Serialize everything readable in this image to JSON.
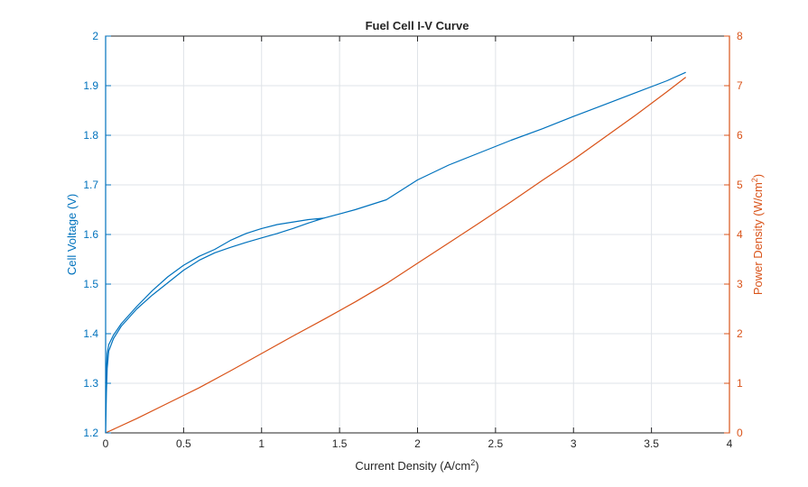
{
  "chart_data": {
    "type": "line",
    "title": "Fuel Cell I-V Curve",
    "xlabel": "Current  Density  (A/cm",
    "xlabel_sup": "2",
    "xlabel_suffix": ")",
    "ylabel_left": "Cell Voltage (V)",
    "ylabel_right": "Power  Density  (W/cm",
    "ylabel_right_sup": "2",
    "ylabel_right_suffix": ")",
    "xlim": [
      0,
      4
    ],
    "ylim_left": [
      1.2,
      2.0
    ],
    "ylim_right": [
      0,
      8
    ],
    "x_ticks": [
      "0",
      "0.5",
      "1",
      "1.5",
      "2",
      "2.5",
      "3",
      "3.5",
      "4"
    ],
    "y_left_ticks": [
      "1.2",
      "1.3",
      "1.4",
      "1.5",
      "1.6",
      "1.7",
      "1.8",
      "1.9",
      "2"
    ],
    "y_right_ticks": [
      "0",
      "1",
      "2",
      "3",
      "4",
      "5",
      "6",
      "7",
      "8"
    ],
    "grid": true,
    "colors": {
      "voltage": "#0072BD",
      "power": "#D95319",
      "grid": "#dfe3e8",
      "axis": "#262626"
    },
    "series": [
      {
        "axis": "left",
        "color": "#0072BD",
        "x": [
          0,
          0.005,
          0.01,
          0.02,
          0.05,
          0.1,
          0.2,
          0.3,
          0.4,
          0.5,
          0.6,
          0.7,
          0.8,
          0.9,
          1.0,
          1.1,
          1.2,
          1.3,
          1.4,
          1.3,
          1.2,
          1.1,
          1.0,
          0.9,
          0.8,
          0.7,
          0.6,
          0.5,
          0.4,
          0.3,
          0.2,
          0.1,
          0.05,
          0.02,
          0.01,
          0.0
        ],
        "y": [
          1.2,
          1.28,
          1.33,
          1.365,
          1.39,
          1.415,
          1.45,
          1.478,
          1.503,
          1.528,
          1.548,
          1.563,
          1.574,
          1.584,
          1.593,
          1.602,
          1.612,
          1.623,
          1.633,
          1.63,
          1.625,
          1.62,
          1.612,
          1.602,
          1.588,
          1.57,
          1.556,
          1.538,
          1.515,
          1.487,
          1.455,
          1.42,
          1.397,
          1.378,
          1.36,
          1.3
        ]
      },
      {
        "axis": "left",
        "color": "#0072BD",
        "x": [
          1.4,
          1.6,
          1.8,
          2.0,
          2.2,
          2.4,
          2.6,
          2.8,
          3.0,
          3.2,
          3.4,
          3.6,
          3.72
        ],
        "y": [
          1.633,
          1.65,
          1.67,
          1.71,
          1.74,
          1.765,
          1.79,
          1.813,
          1.838,
          1.862,
          1.886,
          1.91,
          1.927
        ]
      },
      {
        "axis": "right",
        "color": "#D95319",
        "x": [
          0,
          0.2,
          0.4,
          0.6,
          0.8,
          1.0,
          1.2,
          1.4,
          1.6,
          1.8,
          2.0,
          2.2,
          2.4,
          2.6,
          2.8,
          3.0,
          3.2,
          3.4,
          3.6,
          3.72
        ],
        "y": [
          0,
          0.29,
          0.6,
          0.91,
          1.25,
          1.6,
          1.95,
          2.29,
          2.64,
          3.01,
          3.42,
          3.83,
          4.24,
          4.66,
          5.09,
          5.51,
          5.96,
          6.41,
          6.88,
          7.17
        ]
      }
    ]
  }
}
